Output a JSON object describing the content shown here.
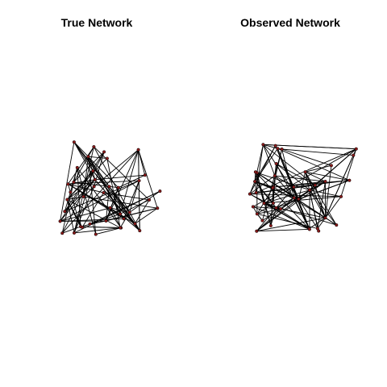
{
  "figure": {
    "panels": [
      {
        "id": "true",
        "title": "True Network",
        "node_count": 40,
        "edge_count": 110,
        "seed": 7
      },
      {
        "id": "observed",
        "title": "Observed Network",
        "node_count": 40,
        "edge_count": 130,
        "seed": 23
      }
    ],
    "colors": {
      "edge": "#000000",
      "node_fill": "#8b1a1a",
      "node_stroke": "#000000"
    }
  }
}
